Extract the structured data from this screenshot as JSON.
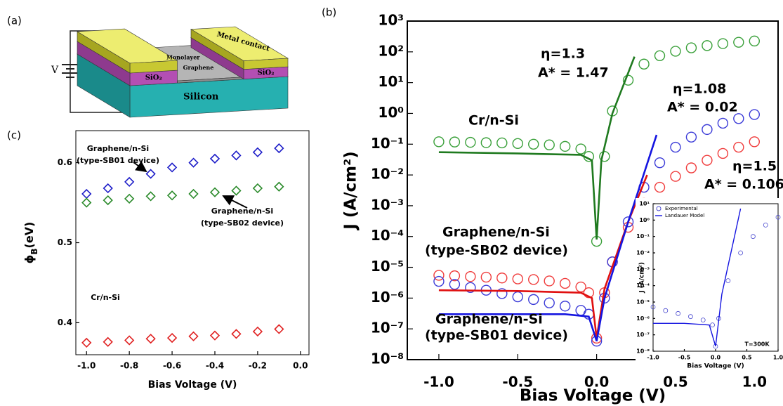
{
  "diagram": {
    "panel": "(a)",
    "voltage": "V",
    "metal": "Metal contact",
    "graphene": [
      "Monolayer",
      "Graphene"
    ],
    "oxide": [
      "SiO₂",
      "SiO₂"
    ],
    "substrate": "Silicon"
  },
  "chart_data": [
    {
      "type": "scatter",
      "panel": "(c)",
      "marker": "diamond",
      "x_label": "Bias Voltage (V)",
      "y_label": [
        "ϕ",
        "B",
        "(eV)"
      ],
      "xlim": [
        -1.05,
        0.04
      ],
      "ylim": [
        0.36,
        0.64
      ],
      "xticks": [
        {
          "value": -1,
          "label": "-1.0"
        },
        -0.8,
        -0.6,
        -0.4,
        -0.2,
        {
          "value": 0,
          "label": "0.0"
        }
      ],
      "yticks": [
        0.4,
        0.5,
        0.6
      ],
      "x": [
        -1,
        -0.9,
        -0.8,
        -0.7,
        -0.6,
        -0.5,
        -0.4,
        -0.3,
        -0.2,
        -0.1
      ],
      "series": [
        {
          "color": "#1c1cc8",
          "values": [
            0.561,
            0.568,
            0.576,
            0.586,
            0.594,
            0.6,
            0.605,
            0.609,
            0.613,
            0.618
          ]
        },
        {
          "color": "#2a8a2a",
          "values": [
            0.55,
            0.553,
            0.555,
            0.558,
            0.559,
            0.561,
            0.563,
            0.565,
            0.568,
            0.57
          ]
        },
        {
          "color": "#e02020",
          "values": [
            0.375,
            0.376,
            0.378,
            0.38,
            0.381,
            0.383,
            0.384,
            0.386,
            0.389,
            0.392
          ]
        }
      ],
      "annotations": [
        "Graphene/n-Si",
        "(type-SB01 device)",
        "Graphene/n-Si",
        "(type-SB02 device)",
        "Cr/n-Si"
      ]
    },
    {
      "type": "scatter",
      "panel": "(b)",
      "log_y": true,
      "x_label": "Bias Voltage (V)",
      "y_label": "J (A/cm²)",
      "xlim": [
        -1.2,
        1.15
      ],
      "ylim": [
        1e-08,
        1000
      ],
      "xticks": [
        {
          "value": -1,
          "label": "-1.0"
        },
        -0.5,
        {
          "value": 0,
          "label": "0.0"
        },
        0.5,
        {
          "value": 1,
          "label": "1.0"
        }
      ],
      "yticks": [
        {
          "value": 1000,
          "label": "10³"
        },
        {
          "value": 100,
          "label": "10²"
        },
        {
          "value": 10,
          "label": "10¹"
        },
        {
          "value": 1,
          "label": "10⁰"
        },
        {
          "value": 0.1,
          "label": "10⁻¹"
        },
        {
          "value": 0.01,
          "label": "10⁻²"
        },
        {
          "value": 0.001,
          "label": "10⁻³"
        },
        {
          "value": 0.0001,
          "label": "10⁻⁴"
        },
        {
          "value": 1e-05,
          "label": "10⁻⁵"
        },
        {
          "value": 1e-06,
          "label": "10⁻⁶"
        },
        {
          "value": 1e-07,
          "label": "10⁻⁷"
        },
        {
          "value": 1e-08,
          "label": "10⁻⁸"
        }
      ],
      "series": [
        {
          "style": "marker",
          "color": "#3aa03a",
          "x": [
            -1,
            -0.9,
            -0.8,
            -0.7,
            -0.6,
            -0.5,
            -0.4,
            -0.3,
            -0.2,
            -0.1,
            -0.05,
            0,
            0.05,
            0.1,
            0.2,
            0.3,
            0.4,
            0.5,
            0.6,
            0.7,
            0.8,
            0.9,
            1
          ],
          "values": [
            0.12,
            0.118,
            0.115,
            0.112,
            0.11,
            0.105,
            0.1,
            0.095,
            0.085,
            0.07,
            0.04,
            7e-05,
            0.04,
            1.2,
            12,
            40,
            75,
            105,
            135,
            160,
            185,
            205,
            225
          ]
        },
        {
          "style": "marker",
          "color": "#f03c3c",
          "x": [
            -1,
            -0.9,
            -0.8,
            -0.7,
            -0.6,
            -0.5,
            -0.4,
            -0.3,
            -0.2,
            -0.1,
            -0.05,
            0,
            0.05,
            0.1,
            0.2,
            0.3,
            0.4,
            0.5,
            0.6,
            0.7,
            0.8,
            0.9,
            1
          ],
          "values": [
            5.5e-06,
            5.3e-06,
            5e-06,
            4.8e-06,
            4.5e-06,
            4.2e-06,
            4e-06,
            3.6e-06,
            3e-06,
            2.3e-06,
            1.5e-06,
            5e-08,
            1.5e-06,
            1.5e-05,
            0.0002,
            0.0012,
            0.004,
            0.009,
            0.017,
            0.03,
            0.05,
            0.08,
            0.12
          ]
        },
        {
          "style": "marker",
          "color": "#3c3cd8",
          "x": [
            -1,
            -0.9,
            -0.8,
            -0.7,
            -0.6,
            -0.5,
            -0.4,
            -0.3,
            -0.2,
            -0.1,
            -0.05,
            0,
            0.05,
            0.1,
            0.2,
            0.3,
            0.4,
            0.5,
            0.6,
            0.7,
            0.8,
            0.9,
            1
          ],
          "values": [
            3.5e-06,
            2.8e-06,
            2.2e-06,
            1.8e-06,
            1.4e-06,
            1.1e-06,
            9e-07,
            7e-07,
            5.5e-07,
            4e-07,
            3e-07,
            4e-08,
            1e-06,
            1.5e-05,
            0.0003,
            0.004,
            0.025,
            0.08,
            0.17,
            0.3,
            0.48,
            0.68,
            0.92
          ]
        },
        {
          "style": "line",
          "color": "#1f7a1f",
          "x": [
            -1,
            -0.5,
            -0.1,
            -0.03,
            0,
            0.03,
            0.1,
            0.24
          ],
          "values": [
            0.055,
            0.05,
            0.045,
            0.03,
            8e-05,
            0.03,
            1,
            70
          ]
        },
        {
          "style": "line",
          "color": "#e01010",
          "x": [
            -1,
            -0.5,
            -0.1,
            -0.03,
            0,
            0.05,
            0.2,
            0.32
          ],
          "values": [
            1.8e-06,
            1.7e-06,
            1.5e-06,
            1e-06,
            5e-08,
            2e-06,
            0.0003,
            0.01
          ]
        },
        {
          "style": "line",
          "color": "#1515e0",
          "x": [
            -1,
            -0.2,
            -0.05,
            0,
            0.05,
            0.2,
            0.38
          ],
          "values": [
            3e-07,
            3e-07,
            2.5e-07,
            4e-08,
            1e-06,
            0.0003,
            0.2
          ]
        }
      ],
      "annotations": [
        "η=1.3",
        "A* = 1.47",
        "Cr/n-Si",
        "η=1.08",
        "A* = 0.02",
        "η=1.5",
        "A* = 0.106",
        "Graphene/n-Si",
        "(type-SB02 device)",
        "Graphene/n-Si",
        "(type-SB01 device)"
      ]
    },
    {
      "type": "scatter",
      "log_y": true,
      "x_label": "Bias Voltage (V)",
      "y_label": "J (A/cm²)",
      "xlim": [
        -1,
        1
      ],
      "ylim": [
        1e-08,
        10
      ],
      "xticks": [
        {
          "value": -1,
          "label": "-1.0"
        },
        -0.5,
        {
          "value": 0,
          "label": "0.0"
        },
        0.5,
        {
          "value": 1,
          "label": "1.0"
        }
      ],
      "yticks": [
        {
          "value": 10,
          "label": "10¹"
        },
        {
          "value": 1,
          "label": "10⁰"
        },
        {
          "value": 0.1,
          "label": "10⁻¹"
        },
        {
          "value": 0.01,
          "label": "10⁻²"
        },
        {
          "value": 0.001,
          "label": "10⁻³"
        },
        {
          "value": 0.0001,
          "label": "10⁻⁴"
        },
        {
          "value": 1e-05,
          "label": "10⁻⁵"
        },
        {
          "value": 1e-06,
          "label": "10⁻⁶"
        },
        {
          "value": 1e-07,
          "label": "10⁻⁷"
        },
        {
          "value": 1e-08,
          "label": "10⁻⁸"
        }
      ],
      "series": [
        {
          "name": "Experimental",
          "style": "marker",
          "color": "#4a4ad0",
          "x": [
            -1,
            -0.8,
            -0.6,
            -0.4,
            -0.2,
            -0.05,
            0,
            0.05,
            0.2,
            0.4,
            0.6,
            0.8,
            1
          ],
          "values": [
            5e-06,
            3e-06,
            2e-06,
            1.3e-06,
            8e-07,
            4e-07,
            2e-08,
            1e-06,
            0.0002,
            0.01,
            0.1,
            0.5,
            1.5
          ]
        },
        {
          "name": "Landauer Model",
          "style": "line",
          "color": "#1515e0",
          "x": [
            -1,
            -0.5,
            -0.1,
            0,
            0.1,
            0.4
          ],
          "values": [
            5e-07,
            5e-07,
            4e-07,
            2e-08,
            3e-05,
            5
          ]
        }
      ],
      "annotations": [
        "T=300K"
      ]
    }
  ]
}
